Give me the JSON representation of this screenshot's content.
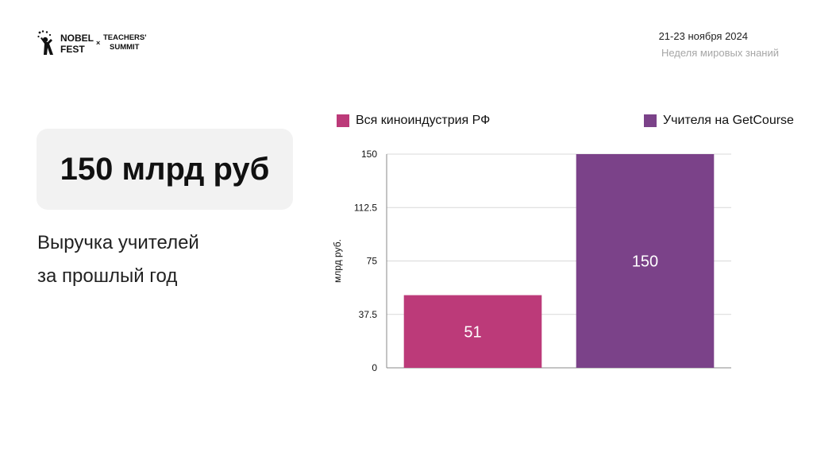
{
  "header": {
    "logo": {
      "nobel": "NOBEL",
      "fest": "FEST",
      "x": "×",
      "teachers": "TEACHERS'",
      "summit": "SUMMIT"
    },
    "date": "21-23 ноября 2024",
    "event_subtitle": "Неделя мировых знаний"
  },
  "stat": {
    "value": "150 млрд руб",
    "description_line1": "Выручка учителей",
    "description_line2": "за прошлый год"
  },
  "colors": {
    "series1": "#bc3a79",
    "series2": "#7b4289",
    "card_bg": "#f2f2f2"
  },
  "chart_data": {
    "type": "bar",
    "categories": [
      "Вся киноиндустрия РФ",
      "Учителя на GetCourse"
    ],
    "values": [
      51,
      150
    ],
    "data_labels": [
      "51",
      "150"
    ],
    "colors": [
      "#bc3a79",
      "#7b4289"
    ],
    "ylabel": "млрд руб.",
    "ylim": [
      0,
      150
    ],
    "yticks": [
      0,
      37.5,
      75,
      112.5,
      150
    ],
    "ytick_labels": [
      "0",
      "37.5",
      "75",
      "112.5",
      "150"
    ],
    "grid": true,
    "legend": [
      "Вся киноиндустрия РФ",
      "Учителя на GetCourse"
    ],
    "legend_position": "top"
  }
}
